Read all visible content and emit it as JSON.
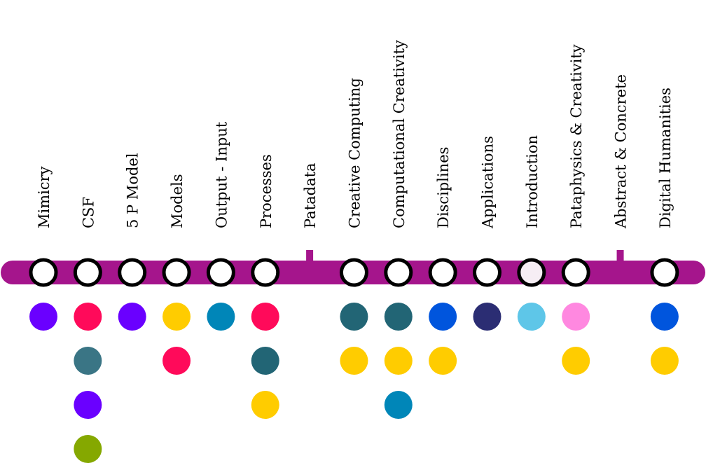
{
  "timeline": {
    "line_color": "#a5158c",
    "station_fill_default": "#ffffff",
    "station_stroke": "#000000"
  },
  "stops": [
    {
      "label": "Mimicry",
      "type": "station",
      "dots": [
        "#6a00ff"
      ]
    },
    {
      "label": "CSF",
      "type": "station",
      "dots": [
        "#ff0a5a",
        "#3a7585",
        "#6a00ff",
        "#85a800"
      ]
    },
    {
      "label": "5 P Model",
      "type": "station",
      "dots": [
        "#6a00ff"
      ]
    },
    {
      "label": "Models",
      "type": "station",
      "dots": [
        "#ffcc00",
        "#ff0a5a"
      ]
    },
    {
      "label": "Output - Input",
      "type": "station",
      "dots": [
        "#0086b8"
      ]
    },
    {
      "label": "Processes",
      "type": "station",
      "dots": [
        "#ff0a5a",
        "#226575",
        "#ffcc00"
      ]
    },
    {
      "label": "Patadata",
      "type": "tick",
      "dots": []
    },
    {
      "label": "Creative Computing",
      "type": "station",
      "dots": [
        "#226575",
        "#ffcc00"
      ]
    },
    {
      "label": "Computational Creativity",
      "type": "station",
      "dots": [
        "#226575",
        "#ffcc00",
        "#0086b8"
      ]
    },
    {
      "label": "Disciplines",
      "type": "station",
      "dots": [
        "#0055dd",
        "#ffcc00"
      ]
    },
    {
      "label": "Applications",
      "type": "station",
      "dots": [
        "#2b2d73"
      ]
    },
    {
      "label": "Introduction",
      "type": "station",
      "fill": "#f6eef4",
      "dots": [
        "#5ec6e8"
      ]
    },
    {
      "label": "Pataphysics & Creativity",
      "type": "station",
      "dots": [
        "#ff88e0",
        "#ffcc00"
      ]
    },
    {
      "label": "Abstract & Concrete",
      "type": "tick",
      "dots": []
    },
    {
      "label": "Digital Humanities",
      "type": "station",
      "dots": [
        "#0055dd",
        "#ffcc00"
      ]
    }
  ]
}
